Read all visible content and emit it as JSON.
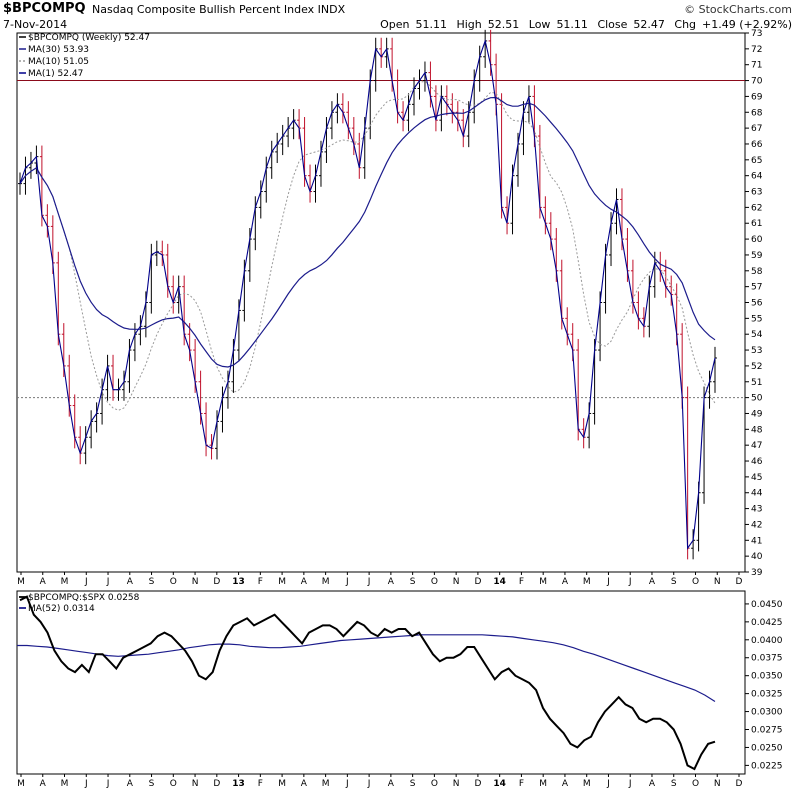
{
  "header": {
    "symbol": "$BPCOMPQ",
    "name": "Nasdaq Composite Bullish Percent Index",
    "exchange": "INDX",
    "date": "7-Nov-2014",
    "brand": "© StockCharts.com",
    "open_label": "Open",
    "open": "51.11",
    "high_label": "High",
    "high": "52.51",
    "low_label": "Low",
    "low": "51.11",
    "close_label": "Close",
    "close": "52.47",
    "chg_label": "Chg",
    "chg": "+1.49 (+2.92%)"
  },
  "colors": {
    "up": "#000000",
    "down": "#c0102a",
    "ma30": "#1c1c8c",
    "ma10": "#9a9a9a",
    "ma1": "#00008b",
    "ratio": "#000000",
    "ratio_ma": "#1c1c8c",
    "line70": "#8b0a1a"
  },
  "chart_data": [
    {
      "type": "ohlc",
      "legend": [
        "$BPCOMPQ (Weekly) 52.47",
        "MA(30) 53.93",
        "MA(10) 51.05",
        "MA(1) 52.47"
      ],
      "ylim": [
        39,
        73
      ],
      "yticks": [
        39,
        40,
        41,
        42,
        43,
        44,
        45,
        46,
        47,
        48,
        49,
        50,
        51,
        52,
        53,
        54,
        55,
        56,
        57,
        58,
        59,
        60,
        61,
        62,
        63,
        64,
        65,
        66,
        67,
        68,
        69,
        70,
        71,
        72,
        73
      ],
      "reference_lines": [
        70,
        50
      ],
      "x_axis_labels": [
        "M",
        "A",
        "M",
        "J",
        "J",
        "A",
        "S",
        "O",
        "N",
        "D",
        "13",
        "F",
        "M",
        "A",
        "M",
        "J",
        "J",
        "A",
        "S",
        "O",
        "N",
        "D",
        "14",
        "F",
        "M",
        "A",
        "M",
        "J",
        "J",
        "A",
        "S",
        "O",
        "N",
        "D"
      ],
      "close": [
        63.5,
        64.5,
        64.8,
        65.2,
        61.5,
        60.8,
        58.5,
        54,
        52,
        49.5,
        47.5,
        46.5,
        47.5,
        48.5,
        49,
        50.5,
        52,
        50.5,
        50.5,
        51,
        53,
        54,
        54.5,
        56,
        59,
        59.2,
        59,
        57,
        56,
        57,
        54,
        53,
        51,
        49,
        47,
        46.8,
        48.5,
        50,
        51,
        53,
        55.5,
        58,
        60,
        62,
        63,
        64.5,
        65.5,
        66,
        66.5,
        67,
        67.5,
        67,
        64,
        63,
        64,
        65.5,
        67,
        68,
        68.5,
        68,
        67,
        66,
        64.5,
        67,
        70,
        72,
        71.5,
        72,
        70,
        68,
        67.5,
        68.5,
        69.5,
        70,
        70.5,
        69,
        67.5,
        69,
        68.5,
        68,
        67.5,
        66.5,
        68,
        70,
        71.5,
        72.5,
        71,
        68.5,
        62,
        61,
        64,
        66,
        68,
        69,
        66.5,
        62,
        61,
        60,
        58,
        55,
        54,
        53,
        48,
        47.5,
        49,
        53,
        56,
        59,
        61,
        62.5,
        60,
        58,
        56,
        55,
        54.5,
        57,
        58.5,
        58,
        57,
        56.5,
        54,
        50,
        40.5,
        41,
        44,
        50,
        51,
        52.5
      ]
    },
    {
      "type": "line",
      "legend": [
        "$BPCOMPQ:$SPX 0.0258",
        "MA(52) 0.0314"
      ],
      "ylim": [
        0.0213,
        0.0468
      ],
      "yticks": [
        0.0225,
        0.025,
        0.0275,
        0.03,
        0.0325,
        0.035,
        0.0375,
        0.04,
        0.0425,
        0.045
      ],
      "ytick_labels": [
        "0.0225",
        "0.0250",
        "0.0275",
        "0.0300",
        "0.0325",
        "0.0350",
        "0.0375",
        "0.0400",
        "0.0425",
        "0.0450"
      ],
      "x_axis_labels": [
        "M",
        "A",
        "M",
        "J",
        "J",
        "A",
        "S",
        "O",
        "N",
        "D",
        "13",
        "F",
        "M",
        "A",
        "M",
        "J",
        "J",
        "A",
        "S",
        "O",
        "N",
        "D",
        "14",
        "F",
        "M",
        "A",
        "M",
        "J",
        "J",
        "A",
        "S",
        "O",
        "N",
        "D"
      ],
      "ratio": [
        0.0455,
        0.046,
        0.0435,
        0.0425,
        0.041,
        0.0385,
        0.037,
        0.036,
        0.0355,
        0.0365,
        0.0355,
        0.038,
        0.038,
        0.037,
        0.036,
        0.0375,
        0.038,
        0.0385,
        0.039,
        0.0395,
        0.0405,
        0.041,
        0.0405,
        0.0395,
        0.0385,
        0.037,
        0.035,
        0.0345,
        0.0355,
        0.0385,
        0.0405,
        0.042,
        0.0425,
        0.043,
        0.042,
        0.0425,
        0.043,
        0.0435,
        0.0425,
        0.0415,
        0.0405,
        0.0395,
        0.041,
        0.0415,
        0.042,
        0.042,
        0.0415,
        0.0405,
        0.0415,
        0.0425,
        0.042,
        0.041,
        0.0405,
        0.0415,
        0.041,
        0.0415,
        0.0415,
        0.0405,
        0.041,
        0.0395,
        0.038,
        0.037,
        0.0375,
        0.0375,
        0.038,
        0.039,
        0.039,
        0.0375,
        0.036,
        0.0345,
        0.0355,
        0.036,
        0.035,
        0.0345,
        0.034,
        0.033,
        0.0305,
        0.029,
        0.028,
        0.027,
        0.0255,
        0.025,
        0.026,
        0.0265,
        0.0285,
        0.03,
        0.031,
        0.032,
        0.031,
        0.0305,
        0.029,
        0.0285,
        0.029,
        0.029,
        0.0285,
        0.0275,
        0.0255,
        0.0225,
        0.022,
        0.024,
        0.0255,
        0.0258
      ],
      "ratio_ma": [
        0.0392,
        0.0392,
        0.0391,
        0.039,
        0.0388,
        0.0386,
        0.0384,
        0.0382,
        0.038,
        0.0378,
        0.0377,
        0.0378,
        0.0379,
        0.038,
        0.0382,
        0.0384,
        0.0386,
        0.0389,
        0.0391,
        0.0393,
        0.0394,
        0.0394,
        0.0393,
        0.0391,
        0.039,
        0.0389,
        0.0389,
        0.039,
        0.0391,
        0.0393,
        0.0395,
        0.0397,
        0.0399,
        0.04,
        0.0401,
        0.0402,
        0.0403,
        0.0404,
        0.0405,
        0.0406,
        0.0407,
        0.0407,
        0.0407,
        0.0407,
        0.0407,
        0.0407,
        0.0407,
        0.0406,
        0.0405,
        0.0404,
        0.0402,
        0.04,
        0.0398,
        0.0396,
        0.0393,
        0.0389,
        0.0384,
        0.038,
        0.0375,
        0.037,
        0.0365,
        0.036,
        0.0355,
        0.035,
        0.0345,
        0.034,
        0.0335,
        0.033,
        0.0323,
        0.0314
      ]
    }
  ]
}
